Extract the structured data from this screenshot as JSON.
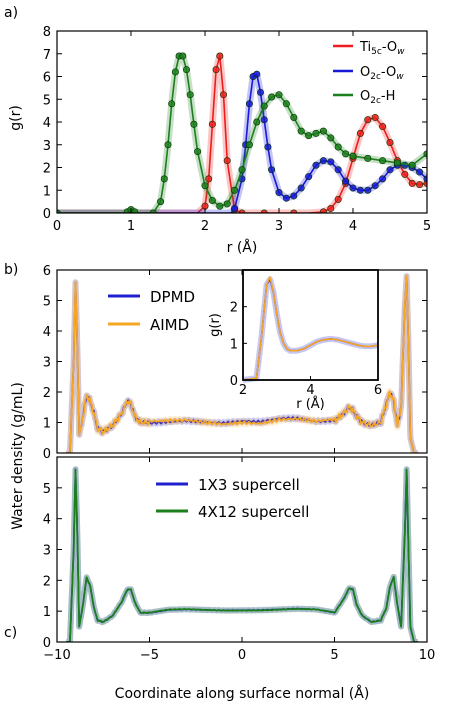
{
  "panel_labels": {
    "a": "a)",
    "b": "b)",
    "c": "c)"
  },
  "chart_data": [
    {
      "id": "a",
      "type": "line",
      "xlabel": "r (Å)",
      "ylabel": "g(r)",
      "xlim": [
        0,
        5
      ],
      "ylim": [
        0,
        8
      ],
      "xticks": [
        "0",
        "1",
        "2",
        "3",
        "4",
        "5"
      ],
      "yticks": [
        "0",
        "1",
        "2",
        "3",
        "4",
        "5",
        "6",
        "7",
        "8"
      ],
      "grid": false,
      "legend_position": "top-right",
      "legend": [
        {
          "base": "Ti",
          "sub1": "5c",
          "mid": "-O",
          "sub2": "w",
          "color": "#ee1c1c"
        },
        {
          "base": "O",
          "sub1": "2c",
          "mid": "-O",
          "sub2": "w",
          "color": "#1717d6"
        },
        {
          "base": "O",
          "sub1": "2c",
          "mid": "-H",
          "sub2": "",
          "color": "#1b7f1b"
        }
      ],
      "series": [
        {
          "color": "#ee1c1c",
          "x": [
            0,
            1.9,
            2.0,
            2.05,
            2.1,
            2.15,
            2.2,
            2.25,
            2.3,
            2.4,
            2.5,
            2.6,
            2.8,
            3.0,
            3.2,
            3.4,
            3.6,
            3.7,
            3.8,
            3.9,
            4.0,
            4.1,
            4.2,
            4.3,
            4.4,
            4.5,
            4.6,
            4.7,
            4.8,
            4.9,
            5.0
          ],
          "y": [
            0,
            0,
            0.3,
            1.5,
            3.9,
            6.3,
            6.9,
            5.2,
            2.3,
            0.15,
            0,
            0,
            0,
            0,
            0,
            0,
            0.05,
            0.2,
            0.6,
            1.3,
            2.4,
            3.5,
            4.1,
            4.2,
            3.8,
            3.1,
            2.3,
            1.7,
            1.3,
            1.25,
            1.3
          ]
        },
        {
          "color": "#1717d6",
          "x": [
            0,
            2.35,
            2.4,
            2.5,
            2.55,
            2.6,
            2.65,
            2.7,
            2.75,
            2.8,
            2.85,
            2.9,
            3.0,
            3.1,
            3.2,
            3.3,
            3.4,
            3.5,
            3.6,
            3.7,
            3.8,
            3.9,
            4.0,
            4.1,
            4.2,
            4.3,
            4.4,
            4.5,
            4.6,
            4.7,
            4.8,
            4.9,
            5.0
          ],
          "y": [
            0,
            0,
            0.2,
            1.5,
            3.0,
            4.8,
            6.0,
            6.1,
            5.3,
            4.1,
            2.9,
            1.9,
            0.9,
            0.65,
            0.75,
            1.1,
            1.6,
            2.1,
            2.3,
            2.25,
            1.9,
            1.4,
            1.1,
            1.0,
            1.0,
            1.2,
            1.5,
            1.9,
            2.1,
            2.1,
            2.0,
            1.8,
            1.5
          ]
        },
        {
          "color": "#1b7f1b",
          "x": [
            0,
            0.9,
            0.95,
            1.0,
            1.05,
            1.1,
            1.3,
            1.4,
            1.45,
            1.5,
            1.55,
            1.6,
            1.65,
            1.7,
            1.75,
            1.8,
            1.85,
            1.9,
            2.0,
            2.1,
            2.2,
            2.3,
            2.4,
            2.5,
            2.6,
            2.7,
            2.8,
            2.9,
            3.0,
            3.1,
            3.2,
            3.3,
            3.4,
            3.5,
            3.6,
            3.7,
            3.8,
            3.9,
            4.0,
            4.2,
            4.4,
            4.6,
            4.8,
            5.0
          ],
          "y": [
            0,
            0,
            0.05,
            0.15,
            0.05,
            0,
            0,
            0.5,
            1.5,
            3.0,
            4.8,
            6.2,
            6.9,
            6.9,
            6.3,
            5.2,
            3.9,
            2.7,
            1.2,
            0.55,
            0.3,
            0.4,
            1.0,
            1.9,
            3.0,
            4.0,
            4.7,
            5.1,
            5.2,
            4.8,
            4.2,
            3.6,
            3.4,
            3.5,
            3.6,
            3.3,
            2.9,
            2.6,
            2.5,
            2.4,
            2.3,
            2.2,
            2.1,
            2.6
          ]
        }
      ]
    },
    {
      "id": "b",
      "type": "line",
      "xlabel": "",
      "ylabel": "Water density (g/mL)",
      "xlim": [
        -10,
        10
      ],
      "ylim": [
        0,
        6
      ],
      "yticks": [
        "0",
        "1",
        "2",
        "3",
        "4",
        "5",
        "6"
      ],
      "grid": false,
      "legend_position": "top-left",
      "series": [
        {
          "name": "DPMD",
          "color": "#1f1fd0"
        },
        {
          "name": "AIMD",
          "color": "#f5a623"
        }
      ],
      "x": [
        -9.5,
        -9.3,
        -9.1,
        -9.0,
        -8.9,
        -8.8,
        -8.6,
        -8.4,
        -8.2,
        -8.0,
        -7.8,
        -7.5,
        -7.0,
        -6.5,
        -6.2,
        -6.0,
        -5.8,
        -5.5,
        -5.0,
        -4.0,
        -3.0,
        -2.0,
        -1.0,
        0,
        1.0,
        2.0,
        3.0,
        4.0,
        5.0,
        5.5,
        5.8,
        6.0,
        6.2,
        6.5,
        7.0,
        7.5,
        7.8,
        8.0,
        8.2,
        8.4,
        8.6,
        8.8,
        8.9,
        9.0,
        9.1,
        9.3,
        9.5
      ],
      "y": [
        0,
        0,
        3.0,
        5.6,
        3.5,
        0.6,
        1.2,
        1.9,
        1.7,
        1.3,
        0.8,
        0.7,
        0.9,
        1.3,
        1.7,
        1.6,
        1.2,
        1.0,
        1.0,
        1.05,
        1.1,
        1.05,
        1.0,
        1.05,
        1.0,
        1.1,
        1.1,
        1.0,
        1.05,
        1.3,
        1.5,
        1.4,
        1.2,
        1.0,
        0.9,
        1.0,
        1.6,
        2.0,
        1.7,
        0.9,
        1.5,
        4.8,
        5.8,
        3.5,
        0.5,
        0,
        0
      ],
      "inset": {
        "xlabel": "r (Å)",
        "ylabel": "g(r)",
        "xlim": [
          2,
          6
        ],
        "ylim": [
          0,
          3
        ],
        "xticks": [
          "2",
          "4",
          "6"
        ],
        "yticks": [
          "0",
          "1",
          "2"
        ],
        "x": [
          2.0,
          2.4,
          2.55,
          2.7,
          2.8,
          2.9,
          3.0,
          3.1,
          3.2,
          3.3,
          3.4,
          3.6,
          3.8,
          4.0,
          4.2,
          4.4,
          4.6,
          4.8,
          5.0,
          5.2,
          5.4,
          5.6,
          5.8,
          6.0
        ],
        "y": [
          0,
          0.05,
          1.2,
          2.6,
          2.75,
          2.4,
          1.8,
          1.3,
          1.0,
          0.85,
          0.8,
          0.8,
          0.85,
          0.95,
          1.05,
          1.1,
          1.12,
          1.1,
          1.05,
          1.0,
          0.95,
          0.92,
          0.92,
          0.95
        ]
      }
    },
    {
      "id": "c",
      "type": "line",
      "xlabel": "Coordinate along surface normal (Å)",
      "ylabel": "",
      "xlim": [
        -10,
        10
      ],
      "ylim": [
        0,
        6
      ],
      "xticks": [
        "−10",
        "−5",
        "0",
        "5",
        "10"
      ],
      "yticks": [
        "0",
        "1",
        "2",
        "3",
        "4",
        "5"
      ],
      "grid": false,
      "legend_position": "top-center",
      "series": [
        {
          "name": "1X3 supercell",
          "color": "#1f1fd0"
        },
        {
          "name": "4X12 supercell",
          "color": "#1b7f1b"
        }
      ],
      "x": [
        -9.5,
        -9.3,
        -9.1,
        -9.0,
        -8.9,
        -8.8,
        -8.6,
        -8.4,
        -8.2,
        -8.0,
        -7.8,
        -7.5,
        -7.0,
        -6.5,
        -6.2,
        -6.0,
        -5.8,
        -5.5,
        -5.0,
        -4.0,
        -3.0,
        -2.0,
        -1.0,
        0,
        1.0,
        2.0,
        3.0,
        4.0,
        5.0,
        5.5,
        5.8,
        6.0,
        6.2,
        6.5,
        7.0,
        7.5,
        7.8,
        8.0,
        8.2,
        8.4,
        8.6,
        8.8,
        8.9,
        9.0,
        9.1,
        9.3,
        9.5
      ],
      "y": [
        0,
        0,
        3.0,
        5.6,
        3.5,
        0.5,
        1.2,
        2.1,
        1.8,
        1.1,
        0.7,
        0.65,
        0.85,
        1.3,
        1.7,
        1.7,
        1.3,
        0.95,
        0.95,
        1.05,
        1.07,
        1.05,
        1.03,
        1.03,
        1.03,
        1.05,
        1.07,
        1.05,
        0.95,
        1.4,
        1.75,
        1.7,
        1.2,
        0.85,
        0.65,
        0.7,
        1.1,
        1.8,
        2.1,
        1.2,
        0.5,
        3.5,
        5.6,
        3.0,
        0.5,
        0,
        0
      ]
    }
  ]
}
